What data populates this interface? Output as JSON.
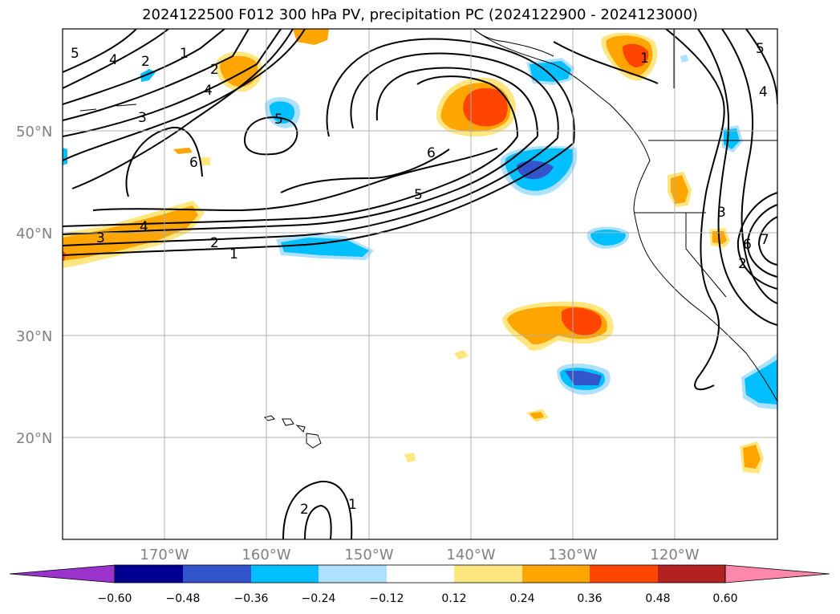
{
  "title": "2024122500 F012 300 hPa PV, precipitation PC (2024122900 - 2024123000)",
  "longitude_labels": [
    "170°W",
    "160°W",
    "150°W",
    "140°W",
    "130°W",
    "120°W"
  ],
  "latitude_labels": [
    "50°N",
    "40°N",
    "30°N",
    "20°N"
  ],
  "map_extent": {
    "lon_min": -180,
    "lon_max": -110,
    "lat_min": 10,
    "lat_max": 60
  },
  "colorbar": {
    "levels": [
      "−0.60",
      "−0.48",
      "−0.36",
      "−0.24",
      "−0.12",
      "0.12",
      "0.24",
      "0.36",
      "0.48",
      "0.60"
    ],
    "colors": [
      "#9933cc",
      "#000090",
      "#3355cc",
      "#00bfff",
      "#aee0ff",
      "#ffffff",
      "#ffe680",
      "#ffa500",
      "#ff4500",
      "#b22222",
      "#ff88aa"
    ],
    "extend": "both"
  },
  "contour_labels": [
    "5",
    "4",
    "2",
    "1",
    "2",
    "3",
    "4",
    "6",
    "2",
    "5",
    "6",
    "5",
    "3",
    "4",
    "2",
    "1",
    "1",
    "5",
    "4",
    "3",
    "6",
    "7",
    "2",
    "1"
  ]
}
